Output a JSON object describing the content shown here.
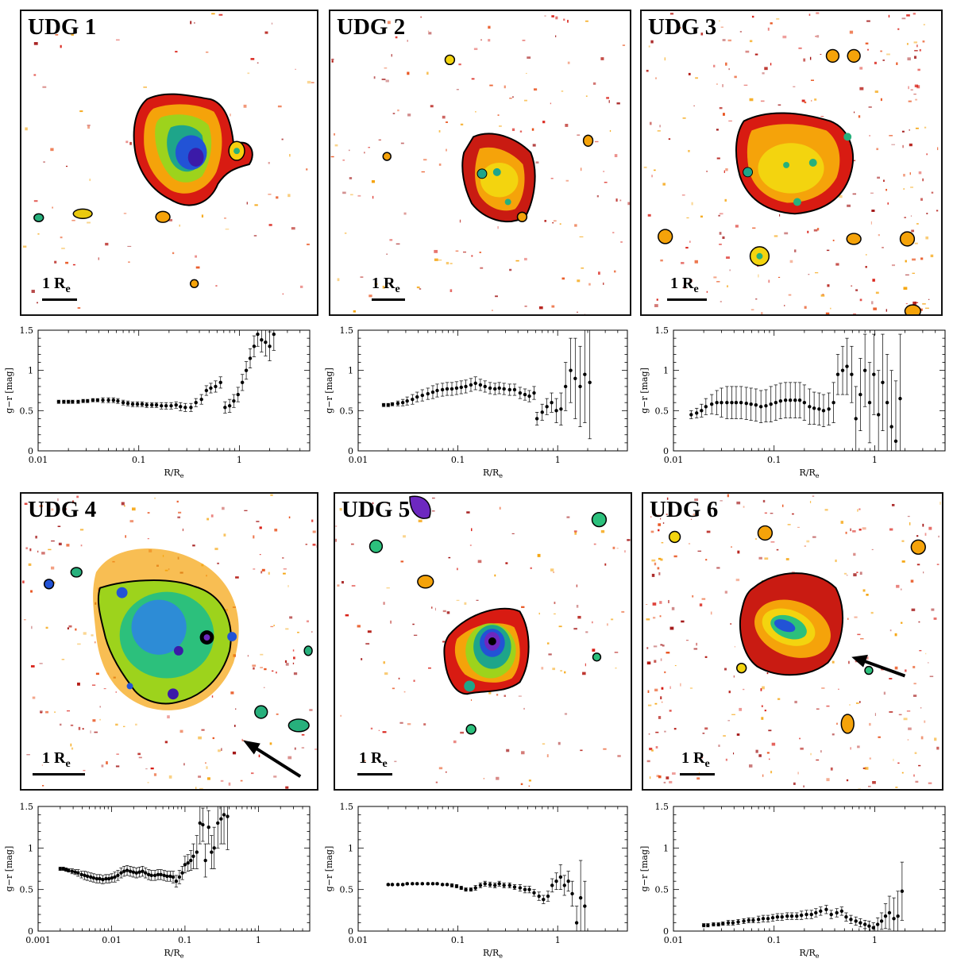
{
  "scale_label": "1 R",
  "scale_sub": "e",
  "panels": [
    {
      "title": "UDG 1",
      "galaxy": "low-surface-brightness galaxy with blue core"
    },
    {
      "title": "UDG 2",
      "galaxy": "faint galaxy with embedded compact sources"
    },
    {
      "title": "UDG 3",
      "galaxy": "diffuse galaxy in crowded field"
    },
    {
      "title": "UDG 4",
      "galaxy": "large galaxy with blue centre and arrow"
    },
    {
      "title": "UDG 5",
      "galaxy": "galaxy with bright nucleus"
    },
    {
      "title": "UDG 6",
      "galaxy": "compact galaxy with arrow"
    }
  ],
  "chart_data": [
    {
      "type": "scatter",
      "title": "",
      "xlabel": "R/R",
      "xlabel_sub": "e",
      "ylabel": "g−r [mag]",
      "xscale": "log",
      "xlim": [
        0.01,
        5
      ],
      "ylim": [
        0,
        1.5
      ],
      "xticks": [
        0.01,
        0.1,
        1
      ],
      "xtick_labels": [
        "0.01",
        "0.1",
        "1"
      ],
      "yticks": [
        0,
        0.5,
        1,
        1.5
      ],
      "ytick_labels": [
        "0",
        "0.5",
        "1",
        "1.5"
      ],
      "x": [
        0.016,
        0.018,
        0.02,
        0.022,
        0.025,
        0.028,
        0.031,
        0.035,
        0.039,
        0.044,
        0.05,
        0.056,
        0.062,
        0.07,
        0.078,
        0.087,
        0.097,
        0.108,
        0.12,
        0.135,
        0.15,
        0.168,
        0.187,
        0.21,
        0.235,
        0.26,
        0.29,
        0.33,
        0.37,
        0.42,
        0.47,
        0.52,
        0.58,
        0.65,
        0.72,
        0.8,
        0.88,
        0.97,
        1.07,
        1.17,
        1.28,
        1.4,
        1.52,
        1.66,
        1.82,
        2.0,
        2.2
      ],
      "y": [
        0.61,
        0.61,
        0.61,
        0.61,
        0.61,
        0.62,
        0.62,
        0.63,
        0.63,
        0.63,
        0.63,
        0.63,
        0.62,
        0.6,
        0.59,
        0.58,
        0.58,
        0.58,
        0.57,
        0.57,
        0.57,
        0.56,
        0.56,
        0.56,
        0.57,
        0.55,
        0.54,
        0.54,
        0.6,
        0.64,
        0.75,
        0.78,
        0.8,
        0.85,
        0.54,
        0.56,
        0.62,
        0.7,
        0.85,
        1.0,
        1.15,
        1.3,
        1.45,
        1.38,
        1.35,
        1.3,
        1.45
      ],
      "err": [
        0.02,
        0.02,
        0.02,
        0.02,
        0.02,
        0.02,
        0.02,
        0.02,
        0.02,
        0.03,
        0.03,
        0.03,
        0.03,
        0.03,
        0.03,
        0.03,
        0.03,
        0.03,
        0.03,
        0.03,
        0.03,
        0.04,
        0.04,
        0.04,
        0.04,
        0.05,
        0.05,
        0.05,
        0.05,
        0.06,
        0.06,
        0.06,
        0.07,
        0.07,
        0.07,
        0.08,
        0.08,
        0.09,
        0.1,
        0.11,
        0.12,
        0.13,
        0.15,
        0.15,
        0.17,
        0.18,
        0.2
      ]
    },
    {
      "type": "scatter",
      "title": "",
      "xlabel": "R/R",
      "xlabel_sub": "e",
      "ylabel": "g−r [mag]",
      "xscale": "log",
      "xlim": [
        0.01,
        5
      ],
      "ylim": [
        0,
        1.5
      ],
      "xticks": [
        0.01,
        0.1,
        1
      ],
      "xtick_labels": [
        "0.01",
        "0.1",
        "1"
      ],
      "yticks": [
        0,
        0.5,
        1,
        1.5
      ],
      "ytick_labels": [
        "0",
        "0.5",
        "1",
        "1.5"
      ],
      "x": [
        0.018,
        0.02,
        0.022,
        0.025,
        0.028,
        0.031,
        0.035,
        0.039,
        0.044,
        0.05,
        0.056,
        0.062,
        0.07,
        0.078,
        0.087,
        0.097,
        0.108,
        0.12,
        0.135,
        0.15,
        0.168,
        0.187,
        0.21,
        0.235,
        0.26,
        0.29,
        0.33,
        0.37,
        0.42,
        0.47,
        0.52,
        0.58,
        0.62,
        0.7,
        0.78,
        0.87,
        0.97,
        1.08,
        1.2,
        1.35,
        1.5,
        1.68,
        1.87,
        2.1
      ],
      "y": [
        0.57,
        0.57,
        0.58,
        0.59,
        0.6,
        0.62,
        0.64,
        0.67,
        0.69,
        0.71,
        0.73,
        0.75,
        0.76,
        0.77,
        0.77,
        0.78,
        0.79,
        0.8,
        0.82,
        0.84,
        0.82,
        0.8,
        0.78,
        0.77,
        0.78,
        0.77,
        0.76,
        0.76,
        0.72,
        0.7,
        0.68,
        0.72,
        0.4,
        0.48,
        0.55,
        0.6,
        0.5,
        0.52,
        0.8,
        1.0,
        0.9,
        0.8,
        0.95,
        0.85
      ],
      "err": [
        0.02,
        0.02,
        0.02,
        0.03,
        0.04,
        0.05,
        0.06,
        0.06,
        0.07,
        0.07,
        0.08,
        0.08,
        0.08,
        0.08,
        0.08,
        0.08,
        0.08,
        0.08,
        0.08,
        0.08,
        0.07,
        0.07,
        0.07,
        0.07,
        0.07,
        0.07,
        0.07,
        0.07,
        0.07,
        0.07,
        0.07,
        0.08,
        0.08,
        0.1,
        0.1,
        0.12,
        0.15,
        0.2,
        0.3,
        0.4,
        0.5,
        0.5,
        0.6,
        0.7
      ]
    },
    {
      "type": "scatter",
      "title": "",
      "xlabel": "R/R",
      "xlabel_sub": "e",
      "ylabel": "g−r [mag]",
      "xscale": "log",
      "xlim": [
        0.01,
        5
      ],
      "ylim": [
        0,
        1.5
      ],
      "xticks": [
        0.01,
        0.1,
        1
      ],
      "xtick_labels": [
        "0.01",
        "0.1",
        "1"
      ],
      "yticks": [
        0,
        0.5,
        1,
        1.5
      ],
      "ytick_labels": [
        "0",
        "0.5",
        "1",
        "1.5"
      ],
      "x": [
        0.015,
        0.017,
        0.019,
        0.021,
        0.024,
        0.027,
        0.03,
        0.034,
        0.038,
        0.042,
        0.047,
        0.053,
        0.059,
        0.066,
        0.074,
        0.083,
        0.093,
        0.104,
        0.116,
        0.13,
        0.145,
        0.162,
        0.18,
        0.2,
        0.225,
        0.25,
        0.28,
        0.31,
        0.35,
        0.39,
        0.43,
        0.48,
        0.53,
        0.59,
        0.65,
        0.72,
        0.8,
        0.89,
        0.98,
        1.09,
        1.2,
        1.33,
        1.47,
        1.62,
        1.79
      ],
      "y": [
        0.45,
        0.47,
        0.5,
        0.55,
        0.58,
        0.6,
        0.6,
        0.6,
        0.6,
        0.6,
        0.6,
        0.59,
        0.58,
        0.57,
        0.55,
        0.56,
        0.58,
        0.6,
        0.62,
        0.63,
        0.63,
        0.63,
        0.63,
        0.6,
        0.55,
        0.53,
        0.52,
        0.5,
        0.52,
        0.6,
        0.95,
        1.0,
        1.05,
        0.95,
        0.4,
        0.7,
        1.0,
        0.6,
        0.95,
        0.45,
        0.85,
        0.6,
        0.3,
        0.12,
        0.65
      ],
      "err": [
        0.05,
        0.06,
        0.08,
        0.1,
        0.12,
        0.15,
        0.18,
        0.2,
        0.2,
        0.2,
        0.2,
        0.2,
        0.2,
        0.2,
        0.2,
        0.2,
        0.22,
        0.22,
        0.22,
        0.22,
        0.22,
        0.22,
        0.22,
        0.22,
        0.22,
        0.2,
        0.2,
        0.2,
        0.2,
        0.25,
        0.25,
        0.3,
        0.35,
        0.35,
        0.4,
        0.45,
        0.45,
        0.5,
        0.5,
        0.55,
        0.6,
        0.6,
        0.7,
        0.75,
        0.8
      ]
    },
    {
      "type": "scatter",
      "title": "",
      "xlabel": "R/R",
      "xlabel_sub": "e",
      "ylabel": "g−r [mag]",
      "xscale": "log",
      "xlim": [
        0.001,
        5
      ],
      "ylim": [
        0,
        1.5
      ],
      "xticks": [
        0.001,
        0.01,
        0.1,
        1
      ],
      "xtick_labels": [
        "0.001",
        "0.01",
        "0.1",
        "1"
      ],
      "yticks": [
        0,
        0.5,
        1,
        1.5
      ],
      "ytick_labels": [
        "0",
        "0.5",
        "1",
        "1.5"
      ],
      "x": [
        0.002,
        0.0022,
        0.0024,
        0.0026,
        0.0029,
        0.0032,
        0.0035,
        0.0039,
        0.0043,
        0.0047,
        0.0052,
        0.0057,
        0.0063,
        0.0069,
        0.0076,
        0.0084,
        0.0092,
        0.0101,
        0.0111,
        0.0122,
        0.0135,
        0.0148,
        0.0163,
        0.018,
        0.0198,
        0.0218,
        0.024,
        0.0264,
        0.029,
        0.032,
        0.035,
        0.039,
        0.043,
        0.047,
        0.052,
        0.057,
        0.063,
        0.069,
        0.076,
        0.084,
        0.092,
        0.1,
        0.11,
        0.12,
        0.13,
        0.145,
        0.16,
        0.175,
        0.19,
        0.21,
        0.23,
        0.25,
        0.28,
        0.31,
        0.34,
        0.38
      ],
      "y": [
        0.75,
        0.75,
        0.74,
        0.73,
        0.72,
        0.71,
        0.7,
        0.68,
        0.67,
        0.66,
        0.65,
        0.64,
        0.63,
        0.63,
        0.62,
        0.63,
        0.63,
        0.64,
        0.65,
        0.67,
        0.7,
        0.72,
        0.73,
        0.72,
        0.71,
        0.7,
        0.71,
        0.72,
        0.7,
        0.68,
        0.67,
        0.67,
        0.68,
        0.68,
        0.67,
        0.66,
        0.66,
        0.65,
        0.6,
        0.65,
        0.7,
        0.8,
        0.82,
        0.85,
        0.9,
        0.95,
        1.3,
        1.28,
        0.85,
        1.25,
        0.95,
        1.0,
        1.3,
        1.35,
        1.4,
        1.38
      ],
      "err": [
        0.02,
        0.02,
        0.02,
        0.02,
        0.03,
        0.03,
        0.04,
        0.04,
        0.05,
        0.05,
        0.05,
        0.05,
        0.05,
        0.05,
        0.05,
        0.05,
        0.05,
        0.05,
        0.06,
        0.06,
        0.06,
        0.06,
        0.06,
        0.06,
        0.06,
        0.06,
        0.06,
        0.06,
        0.06,
        0.06,
        0.06,
        0.06,
        0.06,
        0.06,
        0.06,
        0.06,
        0.06,
        0.07,
        0.07,
        0.08,
        0.08,
        0.1,
        0.1,
        0.12,
        0.15,
        0.2,
        0.25,
        0.2,
        0.2,
        0.2,
        0.2,
        0.25,
        0.3,
        0.3,
        0.35,
        0.4
      ]
    },
    {
      "type": "scatter",
      "title": "",
      "xlabel": "R/R",
      "xlabel_sub": "e",
      "ylabel": "g−r [mag]",
      "xscale": "log",
      "xlim": [
        0.01,
        5
      ],
      "ylim": [
        0,
        1.5
      ],
      "xticks": [
        0.01,
        0.1,
        1
      ],
      "xtick_labels": [
        "0.01",
        "0.1",
        "1"
      ],
      "yticks": [
        0,
        0.5,
        1,
        1.5
      ],
      "ytick_labels": [
        "0",
        "0.5",
        "1",
        "1.5"
      ],
      "x": [
        0.02,
        0.022,
        0.025,
        0.028,
        0.031,
        0.035,
        0.039,
        0.044,
        0.05,
        0.056,
        0.062,
        0.07,
        0.078,
        0.087,
        0.097,
        0.108,
        0.12,
        0.135,
        0.15,
        0.168,
        0.187,
        0.21,
        0.235,
        0.26,
        0.29,
        0.33,
        0.37,
        0.42,
        0.47,
        0.52,
        0.58,
        0.65,
        0.72,
        0.8,
        0.88,
        0.97,
        1.07,
        1.17,
        1.28,
        1.4,
        1.55,
        1.7,
        1.87
      ],
      "y": [
        0.56,
        0.56,
        0.56,
        0.56,
        0.57,
        0.57,
        0.57,
        0.57,
        0.57,
        0.57,
        0.57,
        0.56,
        0.56,
        0.55,
        0.54,
        0.52,
        0.5,
        0.5,
        0.52,
        0.55,
        0.57,
        0.56,
        0.55,
        0.57,
        0.55,
        0.55,
        0.53,
        0.52,
        0.5,
        0.5,
        0.46,
        0.42,
        0.38,
        0.42,
        0.55,
        0.6,
        0.65,
        0.55,
        0.6,
        0.45,
        0.1,
        0.4,
        0.3
      ],
      "err": [
        0.01,
        0.01,
        0.01,
        0.01,
        0.01,
        0.01,
        0.01,
        0.01,
        0.01,
        0.01,
        0.01,
        0.01,
        0.01,
        0.02,
        0.02,
        0.02,
        0.02,
        0.02,
        0.03,
        0.03,
        0.03,
        0.03,
        0.03,
        0.03,
        0.03,
        0.03,
        0.03,
        0.04,
        0.04,
        0.04,
        0.04,
        0.05,
        0.05,
        0.06,
        0.08,
        0.1,
        0.15,
        0.12,
        0.12,
        0.15,
        0.2,
        0.45,
        0.3
      ]
    },
    {
      "type": "scatter",
      "title": "",
      "xlabel": "R/R",
      "xlabel_sub": "e",
      "ylabel": "g−r [mag]",
      "xscale": "log",
      "xlim": [
        0.01,
        5
      ],
      "ylim": [
        0,
        1.5
      ],
      "xticks": [
        0.01,
        0.1,
        1
      ],
      "xtick_labels": [
        "0.01",
        "0.1",
        "1"
      ],
      "yticks": [
        0,
        0.5,
        1,
        1.5
      ],
      "ytick_labels": [
        "0",
        "0.5",
        "1",
        "1.5"
      ],
      "x": [
        0.02,
        0.022,
        0.025,
        0.028,
        0.031,
        0.035,
        0.039,
        0.044,
        0.05,
        0.056,
        0.062,
        0.07,
        0.078,
        0.087,
        0.097,
        0.108,
        0.12,
        0.135,
        0.15,
        0.168,
        0.187,
        0.21,
        0.235,
        0.26,
        0.29,
        0.33,
        0.37,
        0.42,
        0.47,
        0.52,
        0.58,
        0.65,
        0.72,
        0.8,
        0.88,
        0.97,
        1.07,
        1.17,
        1.28,
        1.4,
        1.55,
        1.7,
        1.87
      ],
      "y": [
        0.07,
        0.07,
        0.08,
        0.08,
        0.09,
        0.1,
        0.1,
        0.11,
        0.12,
        0.13,
        0.13,
        0.14,
        0.15,
        0.15,
        0.16,
        0.17,
        0.17,
        0.18,
        0.18,
        0.18,
        0.19,
        0.2,
        0.2,
        0.22,
        0.24,
        0.26,
        0.2,
        0.22,
        0.24,
        0.17,
        0.14,
        0.12,
        0.1,
        0.08,
        0.06,
        0.04,
        0.08,
        0.12,
        0.18,
        0.22,
        0.15,
        0.18,
        0.48
      ],
      "err": [
        0.02,
        0.02,
        0.02,
        0.02,
        0.02,
        0.03,
        0.03,
        0.03,
        0.03,
        0.03,
        0.03,
        0.04,
        0.04,
        0.04,
        0.04,
        0.04,
        0.04,
        0.04,
        0.04,
        0.04,
        0.05,
        0.05,
        0.05,
        0.05,
        0.05,
        0.05,
        0.05,
        0.05,
        0.05,
        0.05,
        0.05,
        0.05,
        0.05,
        0.05,
        0.06,
        0.06,
        0.08,
        0.1,
        0.15,
        0.2,
        0.25,
        0.3,
        0.35
      ]
    }
  ]
}
